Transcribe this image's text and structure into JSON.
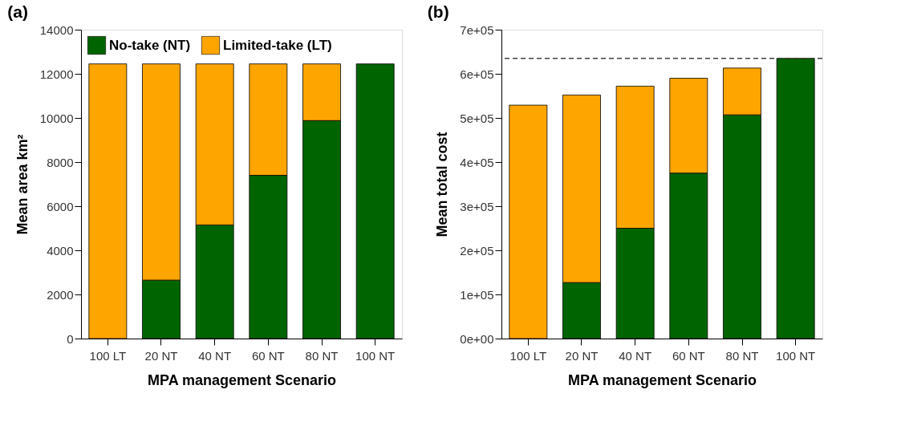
{
  "chart_data": [
    {
      "type": "bar",
      "title": "(a)",
      "xlabel": "MPA management Scenario",
      "ylabel": "Mean area km²",
      "stacked": true,
      "grid": false,
      "legend": "top left",
      "categories": [
        "100 LT",
        "20 NT",
        "40 NT",
        "60 NT",
        "80 NT",
        "100 NT"
      ],
      "series": [
        {
          "name": "No-take (NT)",
          "color": "#006400",
          "values": [
            0,
            2650,
            5150,
            7400,
            9880,
            12450
          ]
        },
        {
          "name": "Limited-take (LT)",
          "color": "#ffa500",
          "values": [
            12450,
            9800,
            7300,
            5050,
            2570,
            0
          ]
        }
      ],
      "ylim": [
        0,
        14000
      ],
      "yticks": [
        0,
        2000,
        4000,
        6000,
        8000,
        10000,
        12000,
        14000
      ]
    },
    {
      "type": "bar",
      "title": "(b)",
      "xlabel": "MPA management Scenario",
      "ylabel": "Mean total cost",
      "stacked": true,
      "grid": false,
      "legend": false,
      "categories": [
        "100 LT",
        "20 NT",
        "40 NT",
        "60 NT",
        "80 NT",
        "100 NT"
      ],
      "series": [
        {
          "color": "#006400",
          "values": [
            0,
            127000,
            250000,
            375000,
            507000,
            635000
          ]
        },
        {
          "color": "#ffa500",
          "values": [
            529000,
            425000,
            322000,
            215000,
            106000,
            0
          ]
        }
      ],
      "ylim": [
        0,
        700000
      ],
      "yticks": [
        {
          "value": 0,
          "label": "0e+00"
        },
        {
          "value": 100000,
          "label": "1e+05"
        },
        {
          "value": 200000,
          "label": "2e+05"
        },
        {
          "value": 300000,
          "label": "3e+05"
        },
        {
          "value": 400000,
          "label": "4e+05"
        },
        {
          "value": 500000,
          "label": "5e+05"
        },
        {
          "value": 600000,
          "label": "6e+05"
        },
        {
          "value": 700000,
          "label": "7e+05"
        }
      ],
      "ref_lines": [
        {
          "axis": "y",
          "value": 635000,
          "line_style": "dashed",
          "color": "#404040"
        }
      ]
    }
  ]
}
